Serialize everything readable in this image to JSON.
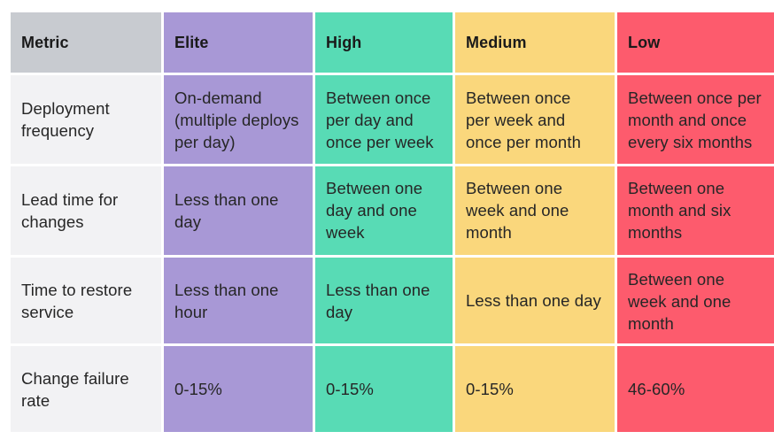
{
  "colors": {
    "metric_header": "#c8cbd0",
    "metric_body": "#f2f2f4",
    "elite": "#a898d6",
    "high": "#58dbb5",
    "medium": "#fad77c",
    "low": "#fd5b6d"
  },
  "table": {
    "headers": [
      "Metric",
      "Elite",
      "High",
      "Medium",
      "Low"
    ],
    "rows": [
      {
        "metric": "Deployment frequency",
        "elite": "On-demand (multiple deploys per day)",
        "high": "Between once per day and once per week",
        "medium": "Between once per week and once per month",
        "low": "Between once per month and once every six months"
      },
      {
        "metric": "Lead time for changes",
        "elite": "Less than one day",
        "high": "Between one day and one week",
        "medium": "Between one week and one month",
        "low": "Between one month and six months"
      },
      {
        "metric": "Time to restore service",
        "elite": "Less than one hour",
        "high": "Less than one day",
        "medium": "Less than one day",
        "low": "Between one week and one month"
      },
      {
        "metric": "Change failure rate",
        "elite": "0-15%",
        "high": "0-15%",
        "medium": "0-15%",
        "low": "46-60%"
      }
    ]
  }
}
